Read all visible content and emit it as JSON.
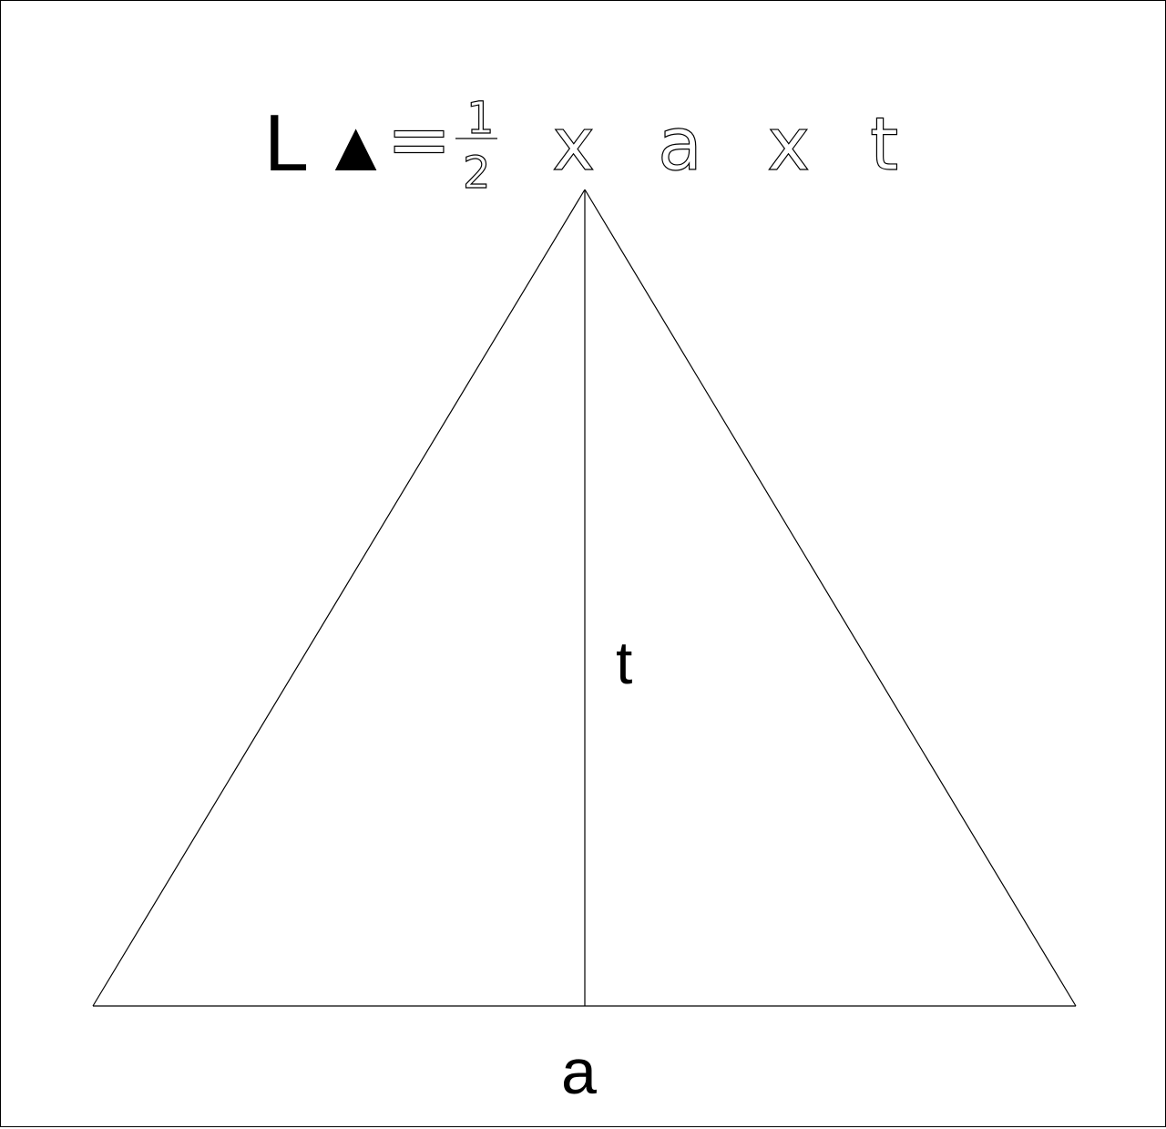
{
  "formula": {
    "area_symbol": "L",
    "shape_symbol": "▲",
    "equals": "=",
    "fraction_numerator": "1",
    "fraction_denominator": "2",
    "times_1": "x",
    "base_var": "a",
    "times_2": "x",
    "height_var": "t"
  },
  "labels": {
    "height": "t",
    "base": "a"
  },
  "colors": {
    "ink": "#000000",
    "background": "#ffffff"
  }
}
